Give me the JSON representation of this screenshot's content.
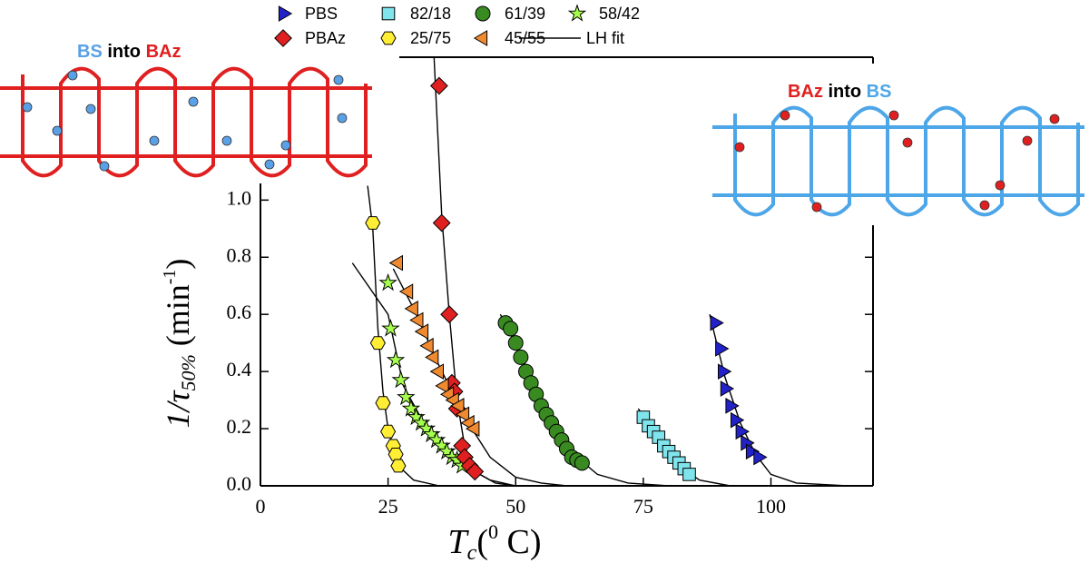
{
  "chart_data": {
    "type": "scatter",
    "xlabel_parts": [
      "T",
      "c",
      "(",
      "0",
      " C)"
    ],
    "ylabel_parts": [
      "1/τ",
      "50%",
      " (min",
      "-1",
      ")"
    ],
    "xlim": [
      0,
      120
    ],
    "ylim": [
      0,
      1.5
    ],
    "xticks": [
      0,
      25,
      50,
      75,
      100
    ],
    "yticks": [
      {
        "value": 0,
        "label": "0.0"
      },
      {
        "value": 0.2,
        "label": "0.2"
      },
      {
        "value": 0.4,
        "label": "0.4"
      },
      {
        "value": 0.6,
        "label": "0.6"
      },
      {
        "value": 0.8,
        "label": "0.8"
      },
      {
        "value": 1.0,
        "label": "1.0"
      }
    ],
    "series": [
      {
        "name": "PBS",
        "color": "#2222c8",
        "marker": "triangle-right",
        "x": [
          89,
          90,
          90.5,
          91,
          92,
          93,
          94,
          95,
          96,
          97.5
        ],
        "values": [
          0.57,
          0.48,
          0.4,
          0.34,
          0.28,
          0.23,
          0.19,
          0.15,
          0.12,
          0.1
        ]
      },
      {
        "name": "82/18",
        "color": "#80e4ec",
        "marker": "square",
        "x": [
          75,
          76,
          77,
          78,
          79,
          80,
          81,
          82,
          83,
          84
        ],
        "values": [
          0.24,
          0.21,
          0.19,
          0.17,
          0.14,
          0.12,
          0.1,
          0.08,
          0.06,
          0.04
        ]
      },
      {
        "name": "61/39",
        "color": "#3a8a22",
        "marker": "circle",
        "x": [
          48,
          49,
          50,
          51,
          52,
          53,
          54,
          55,
          56,
          57,
          58,
          59,
          60,
          61,
          62,
          63
        ],
        "values": [
          0.57,
          0.55,
          0.5,
          0.45,
          0.4,
          0.36,
          0.32,
          0.28,
          0.25,
          0.22,
          0.19,
          0.16,
          0.13,
          0.1,
          0.09,
          0.08
        ]
      },
      {
        "name": "58/42",
        "color": "#a6ff4d",
        "marker": "star",
        "x": [
          25,
          25.5,
          26.5,
          27.5,
          28.5,
          29.5,
          30.5,
          31.5,
          32.5,
          33.5,
          34.5,
          35.5,
          36.5,
          37.5,
          38.5,
          39.5
        ],
        "values": [
          0.71,
          0.55,
          0.44,
          0.37,
          0.31,
          0.27,
          0.24,
          0.22,
          0.2,
          0.18,
          0.16,
          0.14,
          0.12,
          0.1,
          0.09,
          0.07
        ]
      },
      {
        "name": "PBAz",
        "color": "#e02020",
        "marker": "diamond",
        "x": [
          35,
          35.5,
          37,
          37.5,
          38,
          38.5,
          39.5,
          40,
          41,
          42
        ],
        "values": [
          1.4,
          0.92,
          0.6,
          0.36,
          0.33,
          0.27,
          0.14,
          0.1,
          0.07,
          0.05
        ]
      },
      {
        "name": "25/75",
        "color": "#ffee33",
        "marker": "hexagon",
        "x": [
          22,
          23,
          24,
          25,
          26,
          26.5,
          27
        ],
        "values": [
          0.92,
          0.5,
          0.29,
          0.19,
          0.14,
          0.11,
          0.07
        ]
      },
      {
        "name": "45/55",
        "color": "#f08a30",
        "marker": "triangle-left",
        "x": [
          27,
          29,
          30,
          31,
          32,
          33,
          34,
          35,
          36,
          37,
          38,
          39,
          40,
          41,
          42
        ],
        "values": [
          0.78,
          0.68,
          0.62,
          0.58,
          0.54,
          0.49,
          0.45,
          0.4,
          0.35,
          0.32,
          0.3,
          0.28,
          0.25,
          0.22,
          0.2
        ]
      }
    ],
    "fit": {
      "name": "LH fit",
      "color": "#000000",
      "curves": [
        {
          "x": [
            21,
            22,
            23,
            24,
            25,
            27,
            30,
            35
          ],
          "values": [
            1.05,
            0.9,
            0.55,
            0.33,
            0.2,
            0.07,
            0.02,
            0
          ]
        },
        {
          "x": [
            34,
            35.5,
            37,
            38.5,
            40,
            42,
            46,
            50
          ],
          "values": [
            1.5,
            0.95,
            0.6,
            0.3,
            0.14,
            0.05,
            0.01,
            0
          ]
        },
        {
          "x": [
            18,
            25,
            28,
            32,
            36,
            40,
            45,
            50
          ],
          "values": [
            0.78,
            0.6,
            0.35,
            0.22,
            0.14,
            0.07,
            0.02,
            0
          ]
        },
        {
          "x": [
            26,
            30,
            35,
            40,
            45,
            50,
            55,
            60
          ],
          "values": [
            0.76,
            0.62,
            0.42,
            0.24,
            0.1,
            0.03,
            0.01,
            0
          ]
        },
        {
          "x": [
            47,
            52,
            57,
            62,
            66,
            72,
            80
          ],
          "values": [
            0.6,
            0.42,
            0.24,
            0.1,
            0.04,
            0.01,
            0
          ]
        },
        {
          "x": [
            74,
            78,
            82,
            86,
            92
          ],
          "values": [
            0.27,
            0.17,
            0.07,
            0.02,
            0
          ]
        },
        {
          "x": [
            88,
            91,
            94,
            97,
            100,
            105,
            115
          ],
          "values": [
            0.6,
            0.38,
            0.22,
            0.11,
            0.04,
            0.01,
            0
          ]
        }
      ]
    }
  },
  "left_diagram": {
    "label_parts": [
      "BS",
      " into ",
      "BAz"
    ]
  },
  "right_diagram": {
    "label_parts": [
      "BAz",
      " into ",
      "BS"
    ]
  }
}
